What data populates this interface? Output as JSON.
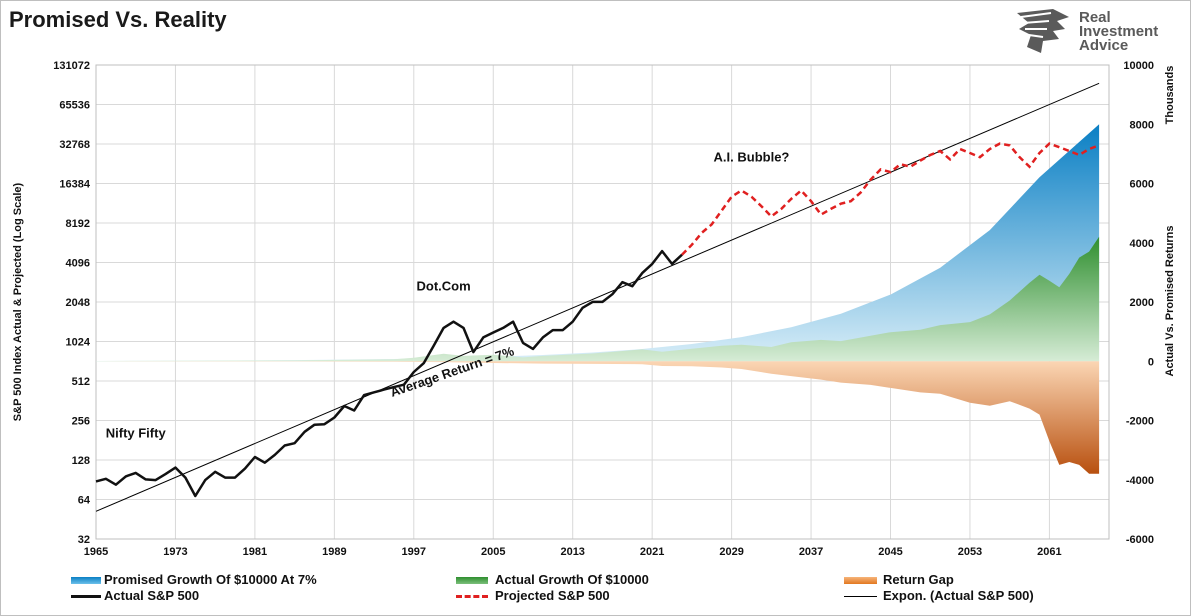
{
  "title": "Promised Vs. Reality",
  "logo": {
    "line1": "Real",
    "line2": "Investment",
    "line3": "Advice",
    "icon": "eagle-head-icon"
  },
  "colors": {
    "promised_top": "#0a7fc4",
    "promised_bottom": "#d9eef8",
    "actual_top": "#2f8f2f",
    "actual_bottom": "#d6ecd6",
    "gap_top": "#fbd6b4",
    "gap_bottom": "#b8500f",
    "sp500": "#111111",
    "projected": "#e02020",
    "trend": "#000000"
  },
  "chart_data": {
    "type": "line",
    "left_axis": {
      "label": "S&P 500 Index Actual & Projected (Log Scale)",
      "scale": "log2",
      "ticks": [
        "32",
        "64",
        "128",
        "256",
        "512",
        "1024",
        "2048",
        "4096",
        "8192",
        "16384",
        "32768",
        "65536",
        "131072"
      ],
      "range": [
        32,
        131072
      ]
    },
    "right_axis": {
      "label": "Actual Vs. Promised Returns",
      "unit_label": "Thousands",
      "ticks": [
        "-6000",
        "-4000",
        "-2000",
        "0",
        "2000",
        "4000",
        "6000",
        "8000",
        "10000"
      ],
      "range": [
        -6000,
        10000
      ]
    },
    "x_axis": {
      "range": [
        1965,
        2067
      ],
      "ticks": [
        "1965",
        "1973",
        "1981",
        "1989",
        "1997",
        "2005",
        "2013",
        "2021",
        "2029",
        "2037",
        "2045",
        "2053",
        "2061"
      ]
    },
    "grid": true,
    "legend_position": "bottom",
    "annotations": [
      {
        "text": "Nifty Fifty",
        "x": 1969,
        "y": 190
      },
      {
        "text": "Dot.Com",
        "x": 2000,
        "y": 2500
      },
      {
        "text": "A.I. Bubble?",
        "x": 2031,
        "y": 24000
      },
      {
        "text": "Average Return = 7%",
        "x": 2001,
        "y": 560
      }
    ],
    "series": [
      {
        "name": "Actual S&P 500",
        "axis": "left",
        "x": [
          1965,
          1966,
          1967,
          1968,
          1969,
          1970,
          1971,
          1972,
          1973,
          1974,
          1975,
          1976,
          1977,
          1978,
          1979,
          1980,
          1981,
          1982,
          1983,
          1984,
          1985,
          1986,
          1987,
          1988,
          1989,
          1990,
          1991,
          1992,
          1993,
          1994,
          1995,
          1996,
          1997,
          1998,
          1999,
          2000,
          2001,
          2002,
          2003,
          2004,
          2005,
          2006,
          2007,
          2008,
          2009,
          2010,
          2011,
          2012,
          2013,
          2014,
          2015,
          2016,
          2017,
          2018,
          2019,
          2020,
          2021,
          2022,
          2023,
          2024
        ],
        "y": [
          88,
          92,
          83,
          96,
          102,
          91,
          90,
          100,
          112,
          94,
          68,
          90,
          104,
          94,
          94,
          110,
          135,
          122,
          140,
          165,
          172,
          210,
          238,
          240,
          270,
          330,
          305,
          400,
          420,
          440,
          460,
          480,
          600,
          700,
          950,
          1300,
          1450,
          1300,
          850,
          1100,
          1200,
          1300,
          1450,
          1000,
          900,
          1100,
          1250,
          1250,
          1450,
          1850,
          2050,
          2050,
          2350,
          2900,
          2700,
          3400,
          4000,
          5000,
          4000,
          4700
        ]
      },
      {
        "name": "Projected S&P 500",
        "axis": "left",
        "x": [
          2024,
          2025,
          2026,
          2027,
          2028,
          2029,
          2030,
          2031,
          2032,
          2033,
          2034,
          2035,
          2036,
          2037,
          2038,
          2039,
          2040,
          2041,
          2042,
          2043,
          2044,
          2045,
          2046,
          2047,
          2048,
          2049,
          2050,
          2051,
          2052,
          2053,
          2054,
          2055,
          2056,
          2057,
          2058,
          2059,
          2060,
          2061,
          2062,
          2063,
          2064,
          2065,
          2066
        ],
        "y": [
          4700,
          5600,
          6900,
          8000,
          10200,
          13000,
          14500,
          13000,
          11000,
          9200,
          10500,
          12500,
          14500,
          12000,
          9500,
          10500,
          11500,
          12000,
          14000,
          17500,
          21000,
          20000,
          23000,
          22000,
          24500,
          27000,
          29000,
          25000,
          30000,
          28000,
          26000,
          30000,
          33000,
          32000,
          26000,
          22000,
          28000,
          33000,
          31000,
          29000,
          27000,
          30000,
          32000
        ]
      },
      {
        "name": "Expon. (Actual S&P 500)",
        "axis": "left",
        "x": [
          1965,
          2066
        ],
        "y": [
          52,
          95000
        ]
      },
      {
        "name": "Promised Growth Of $10000 At 7%",
        "axis": "right",
        "x": [
          1965,
          1975,
          1985,
          1995,
          2000,
          2005,
          2010,
          2015,
          2020,
          2025,
          2030,
          2035,
          2040,
          2045,
          2050,
          2055,
          2060,
          2066
        ],
        "y": [
          10,
          20,
          39,
          76,
          107,
          150,
          211,
          296,
          415,
          582,
          816,
          1145,
          1605,
          2251,
          3157,
          4428,
          6210,
          8000
        ]
      },
      {
        "name": "Actual Growth Of $10000",
        "axis": "right",
        "x": [
          1965,
          1985,
          1995,
          1997,
          2000,
          2002,
          2005,
          2008,
          2010,
          2015,
          2020,
          2022,
          2025,
          2028,
          2030,
          2033,
          2035,
          2038,
          2040,
          2043,
          2045,
          2048,
          2050,
          2053,
          2055,
          2057,
          2059,
          2060,
          2061,
          2062,
          2063,
          2064,
          2065,
          2066
        ],
        "y": [
          10,
          30,
          70,
          120,
          250,
          180,
          220,
          130,
          180,
          260,
          400,
          320,
          420,
          520,
          560,
          480,
          640,
          720,
          680,
          860,
          980,
          1060,
          1220,
          1320,
          1580,
          2050,
          2650,
          2920,
          2720,
          2500,
          2950,
          3500,
          3700,
          4200
        ]
      },
      {
        "name": "Return Gap",
        "axis": "right",
        "x": [
          1965,
          1985,
          1995,
          2000,
          2005,
          2010,
          2015,
          2020,
          2022,
          2025,
          2028,
          2030,
          2033,
          2035,
          2038,
          2040,
          2043,
          2045,
          2048,
          2050,
          2053,
          2055,
          2057,
          2059,
          2060,
          2061,
          2062,
          2063,
          2064,
          2065,
          2066
        ],
        "y": [
          0,
          -10,
          -20,
          -30,
          -60,
          -80,
          -90,
          -100,
          -160,
          -170,
          -210,
          -260,
          -420,
          -500,
          -620,
          -720,
          -800,
          -900,
          -1050,
          -1100,
          -1400,
          -1500,
          -1350,
          -1600,
          -1800,
          -2700,
          -3500,
          -3400,
          -3500,
          -3800,
          -3800
        ]
      }
    ]
  },
  "legend": {
    "promised": "Promised Growth Of $10000 At 7%",
    "actual": "Actual Growth Of $10000",
    "gap": "Return Gap",
    "sp500": "Actual S&P 500",
    "projected": "Projected S&P 500",
    "trend": "Expon. (Actual S&P 500)"
  }
}
